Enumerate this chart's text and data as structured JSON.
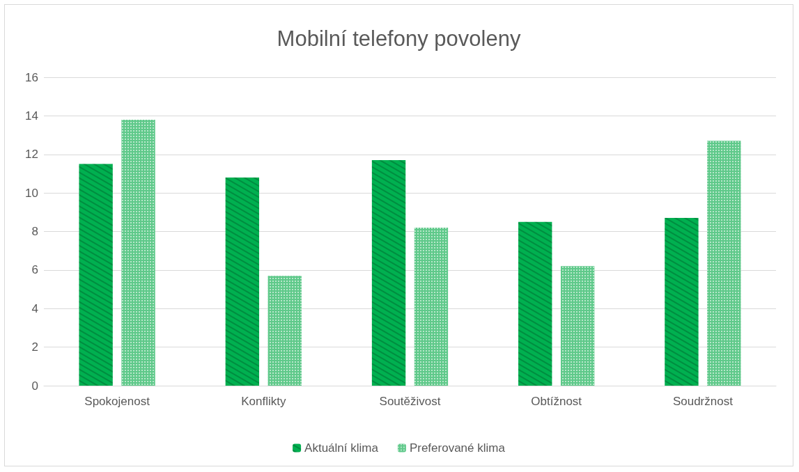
{
  "chart_data": {
    "type": "bar",
    "title": "Mobilní telefony povoleny",
    "categories": [
      "Spokojenost",
      "Konflikty",
      "Soutěživost",
      "Obtížnost",
      "Soudržnost"
    ],
    "series": [
      {
        "name": "Aktuální klima",
        "color": "#00b050",
        "values": [
          11.5,
          10.8,
          11.7,
          8.5,
          8.7
        ]
      },
      {
        "name": "Preferované klima",
        "color": "#5fc98a",
        "values": [
          13.8,
          5.7,
          8.2,
          6.2,
          12.7
        ]
      }
    ],
    "ylim": [
      0,
      16
    ],
    "yticks": [
      0,
      2,
      4,
      6,
      8,
      10,
      12,
      14,
      16
    ],
    "grid": "y",
    "legend": "bottom"
  }
}
